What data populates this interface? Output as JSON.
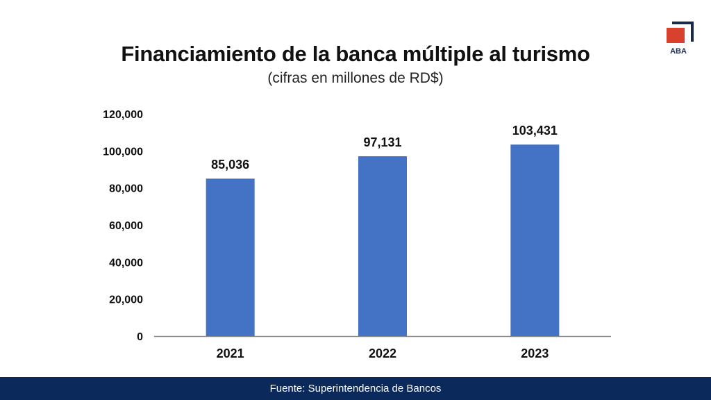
{
  "header": {
    "title": "Financiamiento de la banca múltiple al turismo",
    "subtitle": "(cifras en millones de RD$)"
  },
  "logo": {
    "text": "ABA",
    "accent_color": "#d9412f",
    "frame_color": "#1a2a4a"
  },
  "chart_data": {
    "type": "bar",
    "title": "Financiamiento de la banca múltiple al turismo",
    "subtitle": "(cifras en millones de RD$)",
    "categories": [
      "2021",
      "2022",
      "2023"
    ],
    "values": [
      85036,
      97131,
      103431
    ],
    "value_labels": [
      "85,036",
      "97,131",
      "103,431"
    ],
    "yticks": [
      0,
      20000,
      40000,
      60000,
      80000,
      100000,
      120000
    ],
    "ytick_labels": [
      "0",
      "20,000",
      "40,000",
      "60,000",
      "80,000",
      "100,000",
      "120,000"
    ],
    "ylim": [
      0,
      120000
    ],
    "xlabel": "",
    "ylabel": "",
    "grid": false,
    "bar_color": "#4472c4"
  },
  "footer": {
    "source": "Fuente: Superintendencia de Bancos",
    "background": "#0b2a5b"
  }
}
